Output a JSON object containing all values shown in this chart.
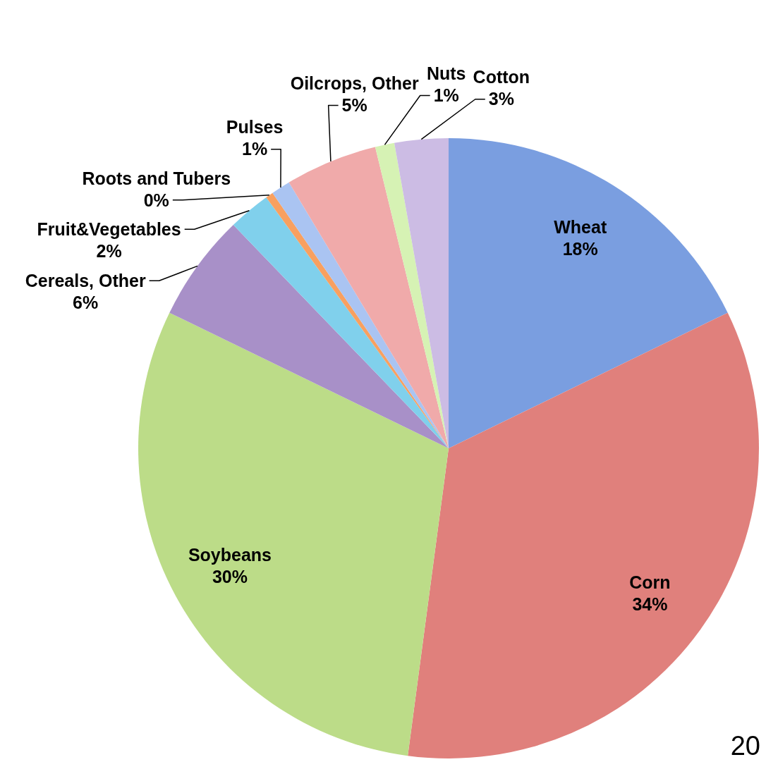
{
  "chart_data": {
    "type": "pie",
    "categories": [
      "Wheat",
      "Corn",
      "Soybeans",
      "Cereals, Other",
      "Fruit&Vegetables",
      "Roots and Tubers",
      "Pulses",
      "Oilcrops, Other",
      "Nuts",
      "Cotton"
    ],
    "values": [
      17.8,
      34.3,
      30.1,
      5.6,
      2.2,
      0.4,
      1.0,
      4.8,
      1.0,
      2.8
    ],
    "value_labels": [
      "18%",
      "34%",
      "30%",
      "6%",
      "2%",
      "0%",
      "1%",
      "5%",
      "1%",
      "3%"
    ],
    "colors": [
      "#7a9ee0",
      "#e0807c",
      "#bcdc88",
      "#a890c8",
      "#80d0ec",
      "#f8a060",
      "#aac4f2",
      "#f0aaaa",
      "#d6f2b4",
      "#ccbce4"
    ],
    "annotations": [
      "20"
    ]
  }
}
